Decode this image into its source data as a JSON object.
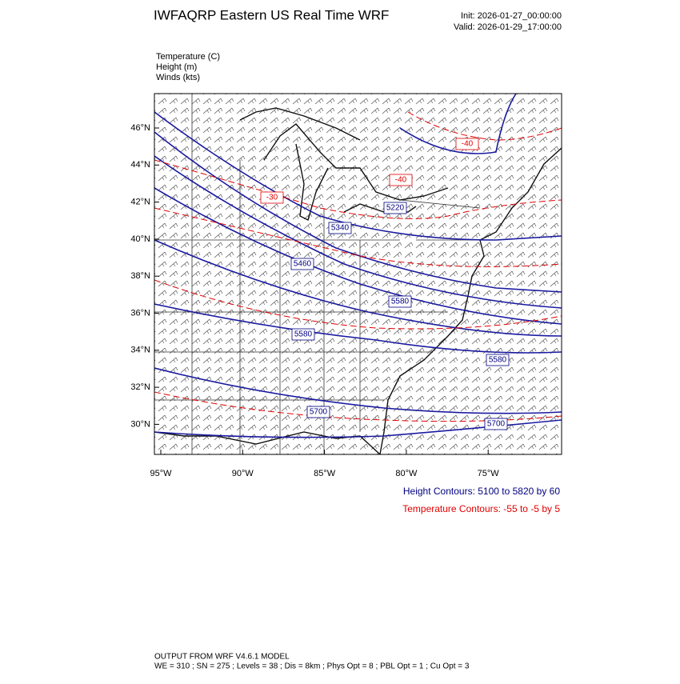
{
  "header": {
    "title": "IWFAQRP Eastern US Real Time WRF",
    "init": "Init: 2026-01-27_00:00:00",
    "valid": "Valid: 2026-01-29_17:00:00"
  },
  "legend": [
    "Temperature   (C)",
    "Height   (m)",
    "Winds   (kts)"
  ],
  "map": {
    "lat_labels": [
      "46°N",
      "44°N",
      "42°N",
      "40°N",
      "38°N",
      "36°N",
      "34°N",
      "32°N",
      "30°N"
    ],
    "lon_labels": [
      "95°W",
      "90°W",
      "85°W",
      "80°W",
      "75°W"
    ],
    "contour_labels": [
      {
        "text": "-40",
        "color": "#e00000"
      },
      {
        "text": "-40",
        "color": "#e00000"
      },
      {
        "text": "-30",
        "color": "#e00000"
      },
      {
        "text": "5220",
        "color": "#000080"
      },
      {
        "text": "5340",
        "color": "#000080"
      },
      {
        "text": "5460",
        "color": "#000080"
      },
      {
        "text": "5580",
        "color": "#000080"
      },
      {
        "text": "5580",
        "color": "#000080"
      },
      {
        "text": "5580",
        "color": "#000080"
      },
      {
        "text": "5700",
        "color": "#000080"
      },
      {
        "text": "5700",
        "color": "#000080"
      }
    ]
  },
  "contour_info": {
    "height": "Height Contours: 5100 to 5820 by 60",
    "temperature": "Temperature Contours: -55 to -5 by 5"
  },
  "footer": [
    "OUTPUT FROM WRF V4.6.1 MODEL",
    "WE = 310 ; SN = 275 ; Levels = 38 ; Dis = 8km ; Phys Opt = 8 ; PBL Opt = 1 ; Cu Opt = 3"
  ]
}
